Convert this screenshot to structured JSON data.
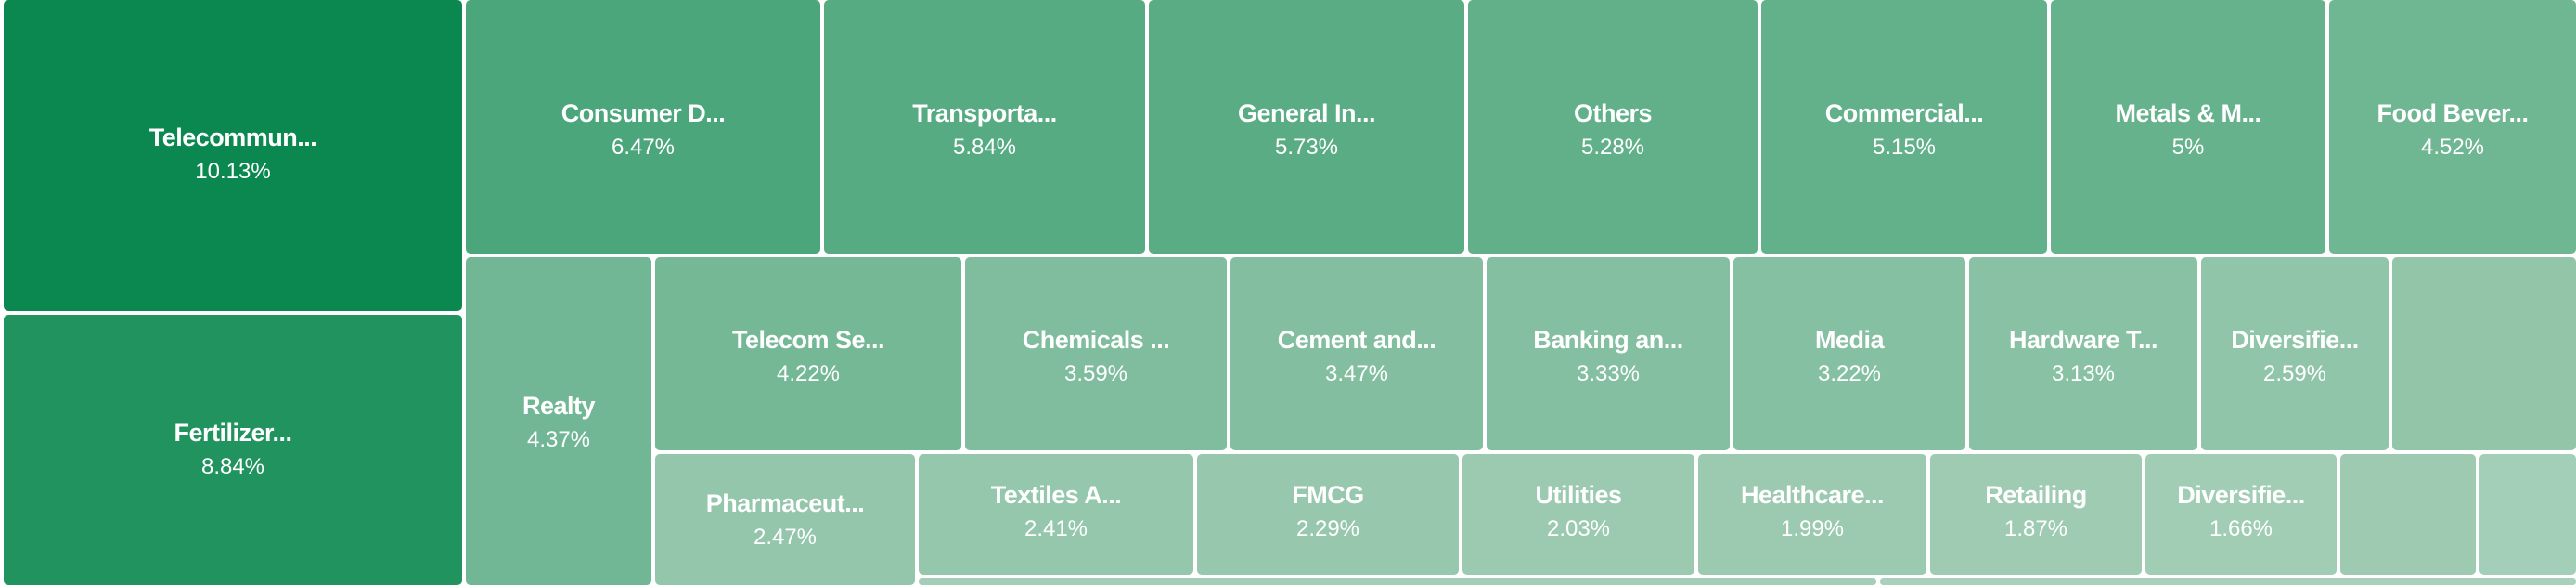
{
  "chart_data": {
    "type": "treemap",
    "value_suffix": "%",
    "colors": {
      "dark": "#0a8850",
      "light": "#a2cdb5"
    },
    "items": [
      {
        "name": "Telecommun...",
        "value": 10.13
      },
      {
        "name": "Fertilizer...",
        "value": 8.84
      },
      {
        "name": "Consumer D...",
        "value": 6.47
      },
      {
        "name": "Transporta...",
        "value": 5.84
      },
      {
        "name": "General In...",
        "value": 5.73
      },
      {
        "name": "Others",
        "value": 5.28
      },
      {
        "name": "Commercial...",
        "value": 5.15
      },
      {
        "name": "Metals & M...",
        "value": 5.0
      },
      {
        "name": "Food Bever...",
        "value": 4.52
      },
      {
        "name": "Realty",
        "value": 4.37
      },
      {
        "name": "Telecom Se...",
        "value": 4.22
      },
      {
        "name": "Chemicals ...",
        "value": 3.59
      },
      {
        "name": "Cement and...",
        "value": 3.47
      },
      {
        "name": "Banking an...",
        "value": 3.33
      },
      {
        "name": "Media",
        "value": 3.22
      },
      {
        "name": "Hardware T...",
        "value": 3.13
      },
      {
        "name": "Diversifie...",
        "value": 2.59
      },
      {
        "name": "Pharmaceut...",
        "value": 2.47
      },
      {
        "name": "Textiles A...",
        "value": 2.41
      },
      {
        "name": "FMCG",
        "value": 2.29
      },
      {
        "name": "Utilities",
        "value": 2.03
      },
      {
        "name": "Healthcare...",
        "value": 1.99
      },
      {
        "name": "Retailing",
        "value": 1.87
      },
      {
        "name": "Diversifie...",
        "value": 1.66
      }
    ]
  }
}
